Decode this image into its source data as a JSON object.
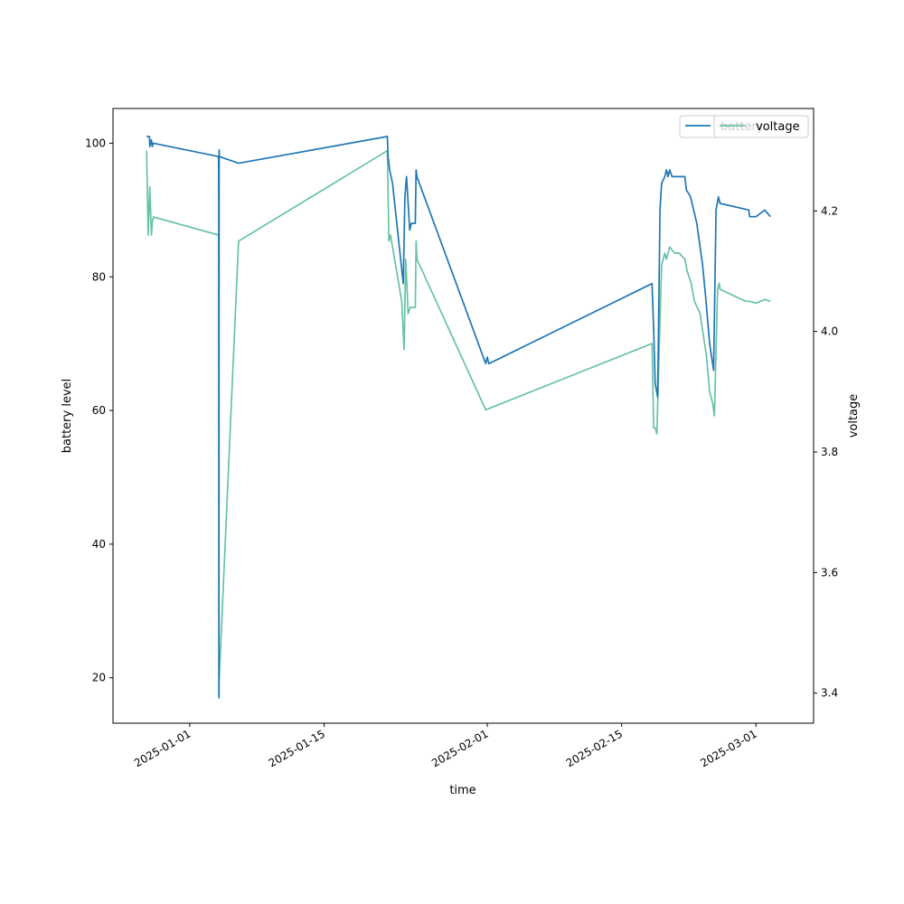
{
  "chart_data": {
    "type": "line",
    "xlabel": "time",
    "ylabel": "battery level",
    "y2label": "voltage",
    "x_tick_labels": [
      "2025-01-01",
      "2025-01-15",
      "2025-02-01",
      "2025-02-15",
      "2025-03-01"
    ],
    "xlim": [
      "2024-12-24",
      "2025-03-07"
    ],
    "ylim": [
      13.2,
      105.2
    ],
    "y_ticks": [
      20,
      40,
      60,
      80,
      100
    ],
    "y2lim": [
      3.35,
      4.37
    ],
    "y2_ticks": [
      3.4,
      3.6,
      3.8,
      4.0,
      4.2
    ],
    "legend_placement": "top-right",
    "grid": false,
    "series": [
      {
        "name": "battery",
        "axis": "left",
        "color": "#1f77b4",
        "points": [
          [
            "2024-12-27T12:00",
            101
          ],
          [
            "2024-12-27T19:00",
            101
          ],
          [
            "2024-12-27T20:00",
            99.5
          ],
          [
            "2024-12-28T00:00",
            100.5
          ],
          [
            "2024-12-28T02:00",
            99.5
          ],
          [
            "2024-12-28T05:00",
            100
          ],
          [
            "2025-01-04T00:00",
            98
          ],
          [
            "2025-01-04T00:30",
            89.5
          ],
          [
            "2025-01-04T01:00",
            17
          ],
          [
            "2025-01-04T01:30",
            99
          ],
          [
            "2025-01-04T02:00",
            98
          ],
          [
            "2025-01-06T02:00",
            97
          ],
          [
            "2025-01-21T14:00",
            101
          ],
          [
            "2025-01-21T16:00",
            98
          ],
          [
            "2025-01-21T20:00",
            96
          ],
          [
            "2025-01-22T03:00",
            94
          ],
          [
            "2025-01-23T06:00",
            79
          ],
          [
            "2025-01-23T10:00",
            92
          ],
          [
            "2025-01-23T14:00",
            95
          ],
          [
            "2025-01-23T18:00",
            91
          ],
          [
            "2025-01-23T22:00",
            87
          ],
          [
            "2025-01-24T02:00",
            88
          ],
          [
            "2025-01-24T12:00",
            88
          ],
          [
            "2025-01-24T14:00",
            96
          ],
          [
            "2025-01-24T16:00",
            95
          ],
          [
            "2025-01-31T20:00",
            67
          ],
          [
            "2025-02-01T00:00",
            68
          ],
          [
            "2025-02-01T04:00",
            67
          ],
          [
            "2025-02-18T04:00",
            79
          ],
          [
            "2025-02-18T08:00",
            72
          ],
          [
            "2025-02-18T12:00",
            64
          ],
          [
            "2025-02-18T18:00",
            62
          ],
          [
            "2025-02-19T00:00",
            90
          ],
          [
            "2025-02-19T04:00",
            94
          ],
          [
            "2025-02-19T12:00",
            95
          ],
          [
            "2025-02-19T16:00",
            96
          ],
          [
            "2025-02-19T20:00",
            95
          ],
          [
            "2025-02-20T00:00",
            96
          ],
          [
            "2025-02-20T06:00",
            95
          ],
          [
            "2025-02-21T14:00",
            95
          ],
          [
            "2025-02-21T18:00",
            93
          ],
          [
            "2025-02-22T04:00",
            92
          ],
          [
            "2025-02-22T20:00",
            88
          ],
          [
            "2025-02-23T10:00",
            82
          ],
          [
            "2025-02-23T18:00",
            77
          ],
          [
            "2025-02-24T04:00",
            70
          ],
          [
            "2025-02-24T14:00",
            66
          ],
          [
            "2025-02-24T20:00",
            90
          ],
          [
            "2025-02-25T02:00",
            92
          ],
          [
            "2025-02-25T06:00",
            91
          ],
          [
            "2025-02-28T06:00",
            90
          ],
          [
            "2025-02-28T08:00",
            89
          ],
          [
            "2025-03-01T00:00",
            89
          ],
          [
            "2025-03-01T22:00",
            90
          ],
          [
            "2025-03-02T12:00",
            89
          ]
        ]
      },
      {
        "name": "voltage",
        "axis": "right",
        "color": "#66c2a5",
        "points": [
          [
            "2024-12-27T12:00",
            4.3
          ],
          [
            "2024-12-27T16:00",
            4.16
          ],
          [
            "2024-12-27T20:00",
            4.24
          ],
          [
            "2024-12-28T00:00",
            4.16
          ],
          [
            "2024-12-28T02:00",
            4.18
          ],
          [
            "2024-12-28T05:00",
            4.19
          ],
          [
            "2025-01-04T00:00",
            4.16
          ],
          [
            "2025-01-04T00:30",
            4.12
          ],
          [
            "2025-01-04T01:00",
            3.395
          ],
          [
            "2025-01-04T01:30",
            3.42
          ],
          [
            "2025-01-06T02:00",
            4.15
          ],
          [
            "2025-01-21T14:00",
            4.3
          ],
          [
            "2025-01-21T16:00",
            4.23
          ],
          [
            "2025-01-21T18:00",
            4.15
          ],
          [
            "2025-01-21T22:00",
            4.16
          ],
          [
            "2025-01-23T02:00",
            4.05
          ],
          [
            "2025-01-23T08:00",
            3.97
          ],
          [
            "2025-01-23T12:00",
            4.12
          ],
          [
            "2025-01-23T18:00",
            4.03
          ],
          [
            "2025-01-24T00:00",
            4.04
          ],
          [
            "2025-01-24T12:00",
            4.04
          ],
          [
            "2025-01-24T14:00",
            4.15
          ],
          [
            "2025-01-24T16:00",
            4.12
          ],
          [
            "2025-01-31T20:00",
            3.87
          ],
          [
            "2025-02-18T04:00",
            3.98
          ],
          [
            "2025-02-18T08:00",
            3.84
          ],
          [
            "2025-02-18T12:00",
            3.84
          ],
          [
            "2025-02-18T16:00",
            3.83
          ],
          [
            "2025-02-19T00:00",
            4.02
          ],
          [
            "2025-02-19T04:00",
            4.11
          ],
          [
            "2025-02-19T12:00",
            4.13
          ],
          [
            "2025-02-19T16:00",
            4.12
          ],
          [
            "2025-02-20T00:00",
            4.14
          ],
          [
            "2025-02-20T12:00",
            4.13
          ],
          [
            "2025-02-21T00:00",
            4.13
          ],
          [
            "2025-02-21T14:00",
            4.12
          ],
          [
            "2025-02-21T20:00",
            4.1
          ],
          [
            "2025-02-22T06:00",
            4.08
          ],
          [
            "2025-02-22T14:00",
            4.05
          ],
          [
            "2025-02-23T04:00",
            4.03
          ],
          [
            "2025-02-23T20:00",
            3.96
          ],
          [
            "2025-02-24T04:00",
            3.9
          ],
          [
            "2025-02-24T12:00",
            3.88
          ],
          [
            "2025-02-24T16:00",
            3.86
          ],
          [
            "2025-02-25T00:00",
            4.07
          ],
          [
            "2025-02-25T04:00",
            4.08
          ],
          [
            "2025-02-25T06:00",
            4.07
          ],
          [
            "2025-02-27T22:00",
            4.05
          ],
          [
            "2025-02-28T08:00",
            4.05
          ],
          [
            "2025-03-01T00:00",
            4.047
          ],
          [
            "2025-03-01T22:00",
            4.053
          ],
          [
            "2025-03-02T12:00",
            4.05
          ]
        ]
      }
    ]
  }
}
